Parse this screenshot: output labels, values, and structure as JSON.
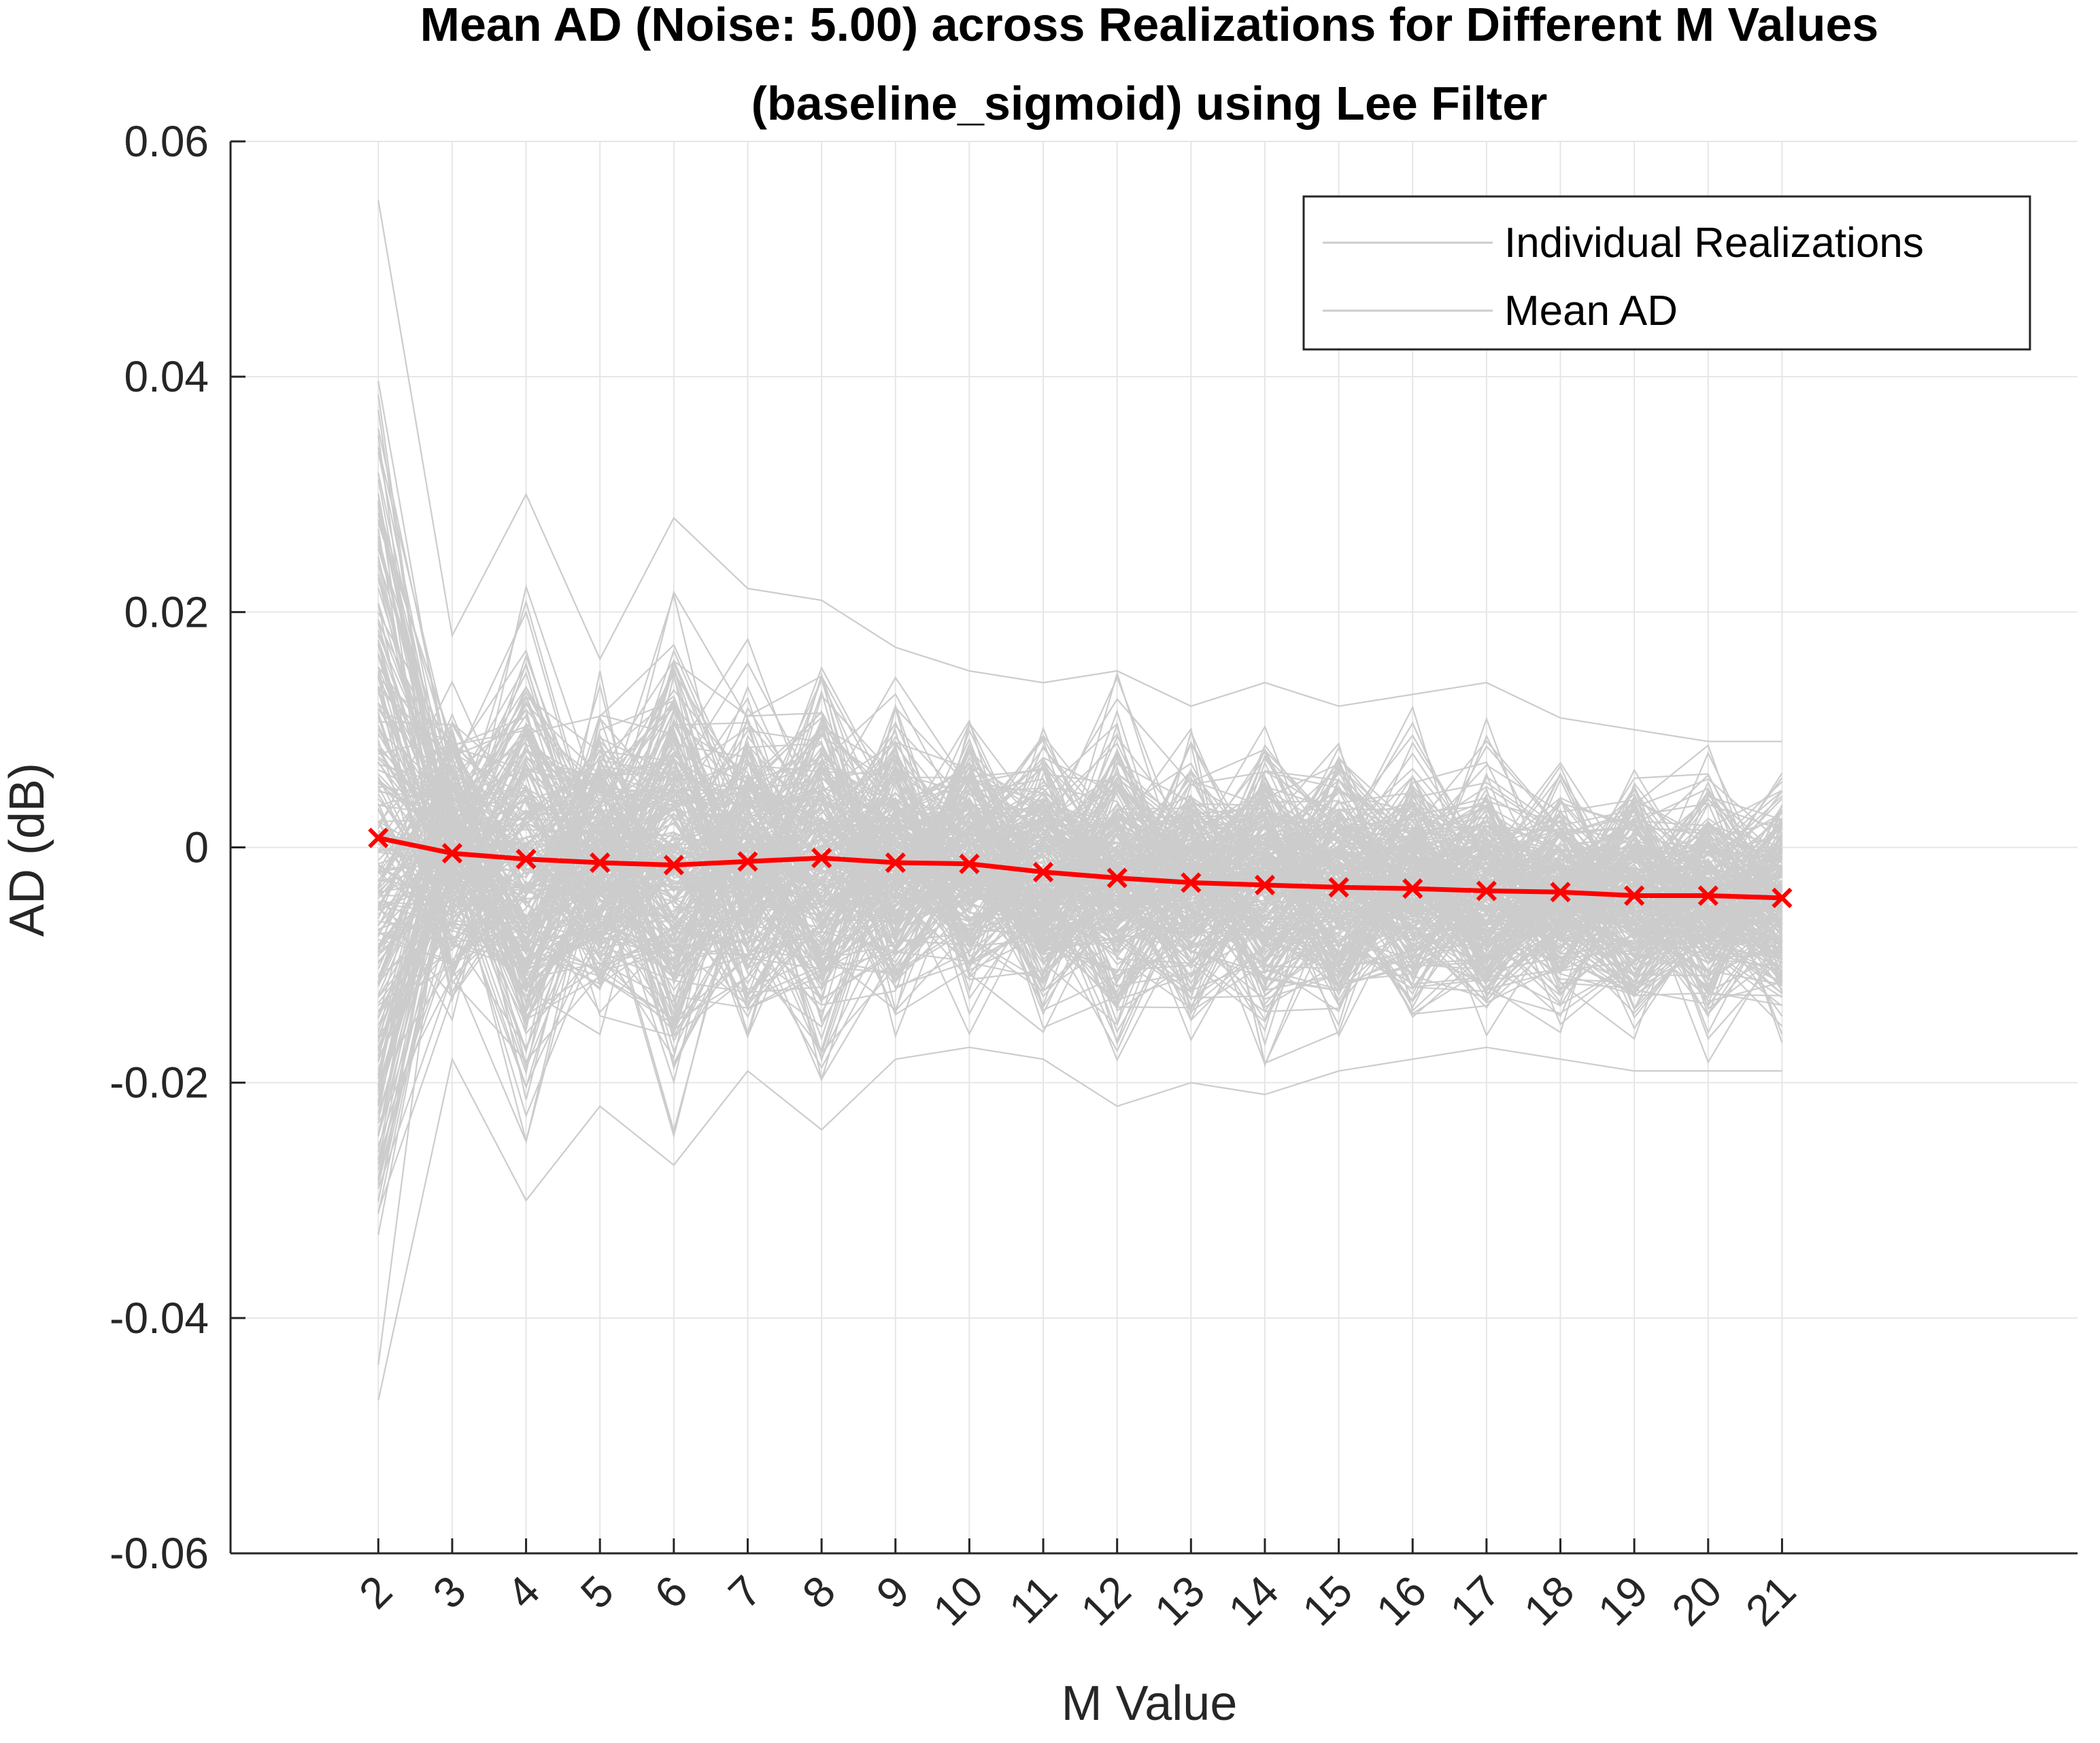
{
  "chart_data": {
    "type": "line",
    "title_line1": "Mean AD (Noise: 5.00) across Realizations for Different M Values",
    "title_line2": "(baseline_sigmoid) using Lee Filter",
    "xlabel": "M Value",
    "ylabel": "AD (dB)",
    "x": [
      2,
      3,
      4,
      5,
      6,
      7,
      8,
      9,
      10,
      11,
      12,
      13,
      14,
      15,
      16,
      17,
      18,
      19,
      20,
      21
    ],
    "xlim": [
      0,
      25
    ],
    "ylim": [
      -0.06,
      0.06
    ],
    "yticks": [
      -0.06,
      -0.04,
      -0.02,
      0,
      0.02,
      0.04,
      0.06
    ],
    "ytick_labels": [
      "-0.06",
      "-0.04",
      "-0.02",
      "0",
      "0.02",
      "0.04",
      "0.06"
    ],
    "grid": true,
    "legend_position": "top-right",
    "series": [
      {
        "name": "Individual Realizations",
        "color": "#cccccc",
        "style": "thin-lines",
        "envelope_upper": [
          0.055,
          0.018,
          0.03,
          0.016,
          0.028,
          0.022,
          0.021,
          0.017,
          0.015,
          0.014,
          0.015,
          0.012,
          0.014,
          0.012,
          0.013,
          0.014,
          0.011,
          0.01,
          0.009,
          0.009
        ],
        "envelope_lower": [
          -0.047,
          -0.018,
          -0.03,
          -0.022,
          -0.027,
          -0.019,
          -0.024,
          -0.018,
          -0.017,
          -0.018,
          -0.022,
          -0.02,
          -0.021,
          -0.019,
          -0.018,
          -0.017,
          -0.018,
          -0.019,
          -0.019,
          -0.019
        ]
      },
      {
        "name": "Mean AD",
        "color": "#ff0000",
        "marker": "x",
        "values": [
          0.0008,
          -0.0005,
          -0.001,
          -0.0013,
          -0.0015,
          -0.0012,
          -0.0009,
          -0.0013,
          -0.0014,
          -0.0021,
          -0.0026,
          -0.003,
          -0.0032,
          -0.0034,
          -0.0035,
          -0.0037,
          -0.0038,
          -0.0041,
          -0.0041,
          -0.0043
        ]
      }
    ]
  }
}
